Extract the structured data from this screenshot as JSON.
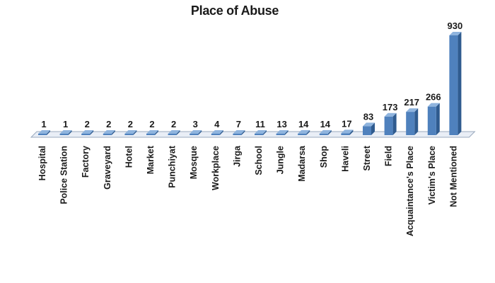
{
  "chart_data": {
    "type": "bar",
    "title": "Place of Abuse",
    "xlabel": "",
    "ylabel": "",
    "categories": [
      "Hospital",
      "Police Station",
      "Factory",
      "Graveyard",
      "Hotel",
      "Market",
      "Punchiyat",
      "Mosque",
      "Workplace",
      "Jirga",
      "School",
      "Jungle",
      "Madarsa",
      "Shop",
      "Haveli",
      "Street",
      "Field",
      "Acquaintance's Place",
      "Victim's Place",
      "Not Mentioned"
    ],
    "values": [
      1,
      1,
      2,
      2,
      2,
      2,
      2,
      3,
      4,
      7,
      11,
      13,
      14,
      14,
      17,
      83,
      173,
      217,
      266,
      930
    ],
    "data_labels": [
      "1",
      "1",
      "2",
      "2",
      "2",
      "2",
      "2",
      "3",
      "4",
      "7",
      "11",
      "13",
      "14",
      "14",
      "17",
      "83",
      "173",
      "217",
      "266",
      "930"
    ],
    "ylim": [
      0,
      930
    ],
    "grid": false,
    "legend": "none",
    "style": "3d-column",
    "colors": {
      "bar_front": "#4f81bd",
      "bar_side": "#2f5b8f",
      "bar_top": "#8fb4de",
      "floor_fill": "#e9eef6",
      "floor_edge": "#9aa9bd"
    }
  }
}
